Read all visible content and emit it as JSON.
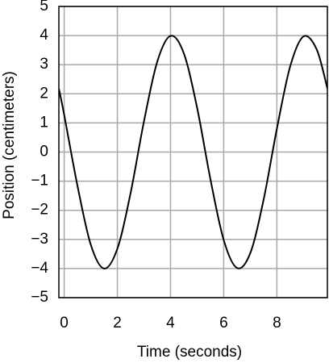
{
  "chart_data": {
    "type": "line",
    "x_label": "Time (seconds)",
    "y_label": "Position (centimeters)",
    "x": [
      -0.2,
      0,
      0.5,
      1,
      1.5,
      2,
      2.5,
      3,
      3.5,
      4,
      4.5,
      5,
      5.5,
      6,
      6.5,
      7,
      7.5,
      8,
      8.5,
      9,
      9.5,
      9.9
    ],
    "series": [
      {
        "color": "#000000",
        "values": [
          2.18,
          1.28,
          -1.16,
          -3.18,
          -4.0,
          -3.32,
          -1.4,
          1.05,
          3.1,
          3.99,
          3.39,
          1.52,
          -0.93,
          -3.02,
          -3.98,
          -3.47,
          -1.64,
          0.8,
          2.94,
          3.97,
          3.52,
          2.18
        ]
      }
    ],
    "xlim": [
      -0.2,
      9.9
    ],
    "ylim": [
      -5,
      5
    ],
    "xticks": [
      0,
      2,
      4,
      6,
      8
    ],
    "yticks": [
      {
        "value": -5,
        "label": "−5"
      },
      {
        "value": -4,
        "label": "−4"
      },
      {
        "value": -3,
        "label": "−3"
      },
      {
        "value": -2,
        "label": "−2"
      },
      {
        "value": -1,
        "label": "−1"
      },
      0,
      1,
      2,
      3,
      4,
      5
    ],
    "grid": true
  }
}
